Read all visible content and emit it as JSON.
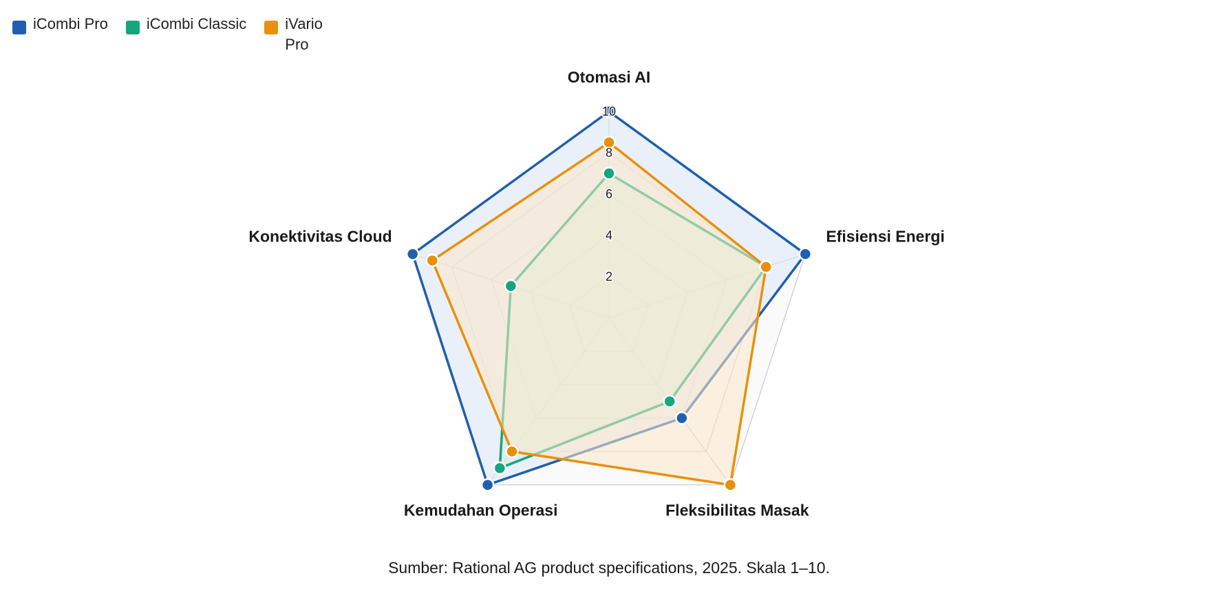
{
  "chart_data": {
    "type": "radar",
    "axes": [
      "Otomasi AI",
      "Efisiensi Energi",
      "Fleksibilitas Masak",
      "Kemudahan Operasi",
      "Konektivitas Cloud"
    ],
    "range": [
      0,
      10
    ],
    "ticks": [
      2,
      4,
      6,
      8,
      10
    ],
    "grid": true,
    "legend_position": "top-left",
    "series": [
      {
        "name": "iCombi Pro",
        "color": "#1f5fad",
        "fill": "#dce8f8",
        "values": [
          10,
          10,
          6,
          10,
          10
        ]
      },
      {
        "name": "iCombi Classic",
        "color": "#14a67c",
        "fill": "#d2efe2",
        "values": [
          7,
          8,
          5,
          9,
          5
        ]
      },
      {
        "name": "iVario Pro",
        "color": "#e8900c",
        "fill": "#fbe7c8",
        "values": [
          8.5,
          8,
          10,
          8,
          9
        ]
      }
    ],
    "source_note": "Sumber: Rational AG product specifications, 2025. Skala 1–10."
  }
}
